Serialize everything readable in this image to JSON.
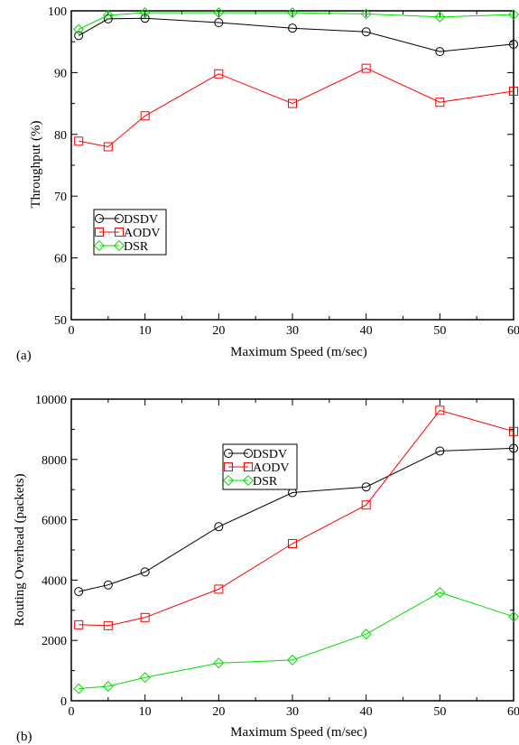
{
  "chart_data": [
    {
      "type": "line",
      "panel_label": "(a)",
      "xlabel": "Maximum Speed (m/sec)",
      "ylabel": "Throughput (%)",
      "xlim": [
        0,
        60
      ],
      "ylim": [
        50,
        100
      ],
      "xticks": [
        0,
        10,
        20,
        30,
        40,
        50,
        60
      ],
      "yticks": [
        50,
        60,
        70,
        80,
        90,
        100
      ],
      "x": [
        1,
        5,
        10,
        20,
        30,
        40,
        50,
        60
      ],
      "legend_position": "lower-left",
      "series": [
        {
          "name": "DSDV",
          "color": "#000000",
          "marker": "circle",
          "values": [
            96.0,
            98.7,
            98.8,
            98.1,
            97.2,
            96.6,
            93.4,
            94.6
          ]
        },
        {
          "name": "AODV",
          "color": "#ff0000",
          "marker": "square",
          "values": [
            78.9,
            78.0,
            83.0,
            89.8,
            85.0,
            90.7,
            85.2,
            87.0
          ]
        },
        {
          "name": "DSR",
          "color": "#00dd00",
          "marker": "diamond",
          "values": [
            97.0,
            99.3,
            99.7,
            99.7,
            99.7,
            99.5,
            99.0,
            99.4
          ]
        }
      ]
    },
    {
      "type": "line",
      "panel_label": "(b)",
      "xlabel": "Maximum Speed (m/sec)",
      "ylabel": "Routing Overhead (packets)",
      "xlim": [
        0,
        60
      ],
      "ylim": [
        0,
        10000
      ],
      "xticks": [
        0,
        10,
        20,
        30,
        40,
        50,
        60
      ],
      "yticks": [
        0,
        2000,
        4000,
        6000,
        8000,
        10000
      ],
      "x": [
        1,
        5,
        10,
        20,
        30,
        40,
        50,
        60
      ],
      "legend_position": "top-center",
      "series": [
        {
          "name": "DSDV",
          "color": "#000000",
          "marker": "circle",
          "values": [
            3620,
            3840,
            4270,
            5770,
            6900,
            7090,
            8280,
            8370
          ]
        },
        {
          "name": "AODV",
          "color": "#ff0000",
          "marker": "square",
          "values": [
            2520,
            2490,
            2760,
            3700,
            5210,
            6490,
            9630,
            8930
          ]
        },
        {
          "name": "DSR",
          "color": "#00dd00",
          "marker": "diamond",
          "values": [
            400,
            480,
            770,
            1250,
            1350,
            2210,
            3590,
            2790
          ]
        }
      ]
    }
  ]
}
